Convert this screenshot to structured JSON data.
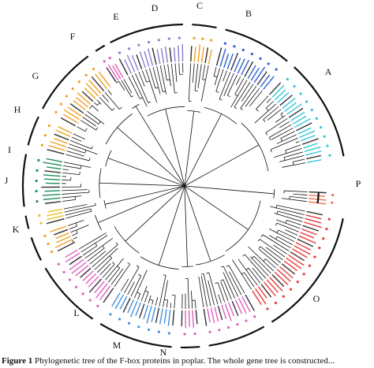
{
  "figure": {
    "clades": [
      {
        "letter": "A",
        "color": "#35c6d6"
      },
      {
        "letter": "B",
        "color": "#2f5fd0"
      },
      {
        "letter": "C",
        "color": "#f0a020"
      },
      {
        "letter": "D",
        "color": "#8a7fd0"
      },
      {
        "letter": "E",
        "color": "#e060c0"
      },
      {
        "letter": "F",
        "color": "#f0a020"
      },
      {
        "letter": "G",
        "color": "#f0a020"
      },
      {
        "letter": "H",
        "color": "#1e8f5a"
      },
      {
        "letter": "I",
        "color": "#e8c020"
      },
      {
        "letter": "J",
        "color": "#f0a020"
      },
      {
        "letter": "K",
        "color": "#e060c0"
      },
      {
        "letter": "L",
        "color": "#4a8fd8"
      },
      {
        "letter": "M",
        "color": "#e060c0"
      },
      {
        "letter": "N",
        "color": "#e060c0"
      },
      {
        "letter": "O",
        "color": "#e83a3a"
      },
      {
        "letter": "P",
        "color": "#f07050"
      }
    ]
  },
  "caption": {
    "lead": "Figure 1",
    "text": " Phylogenetic tree of the F-box proteins in poplar. The whole gene tree is constructed..."
  }
}
